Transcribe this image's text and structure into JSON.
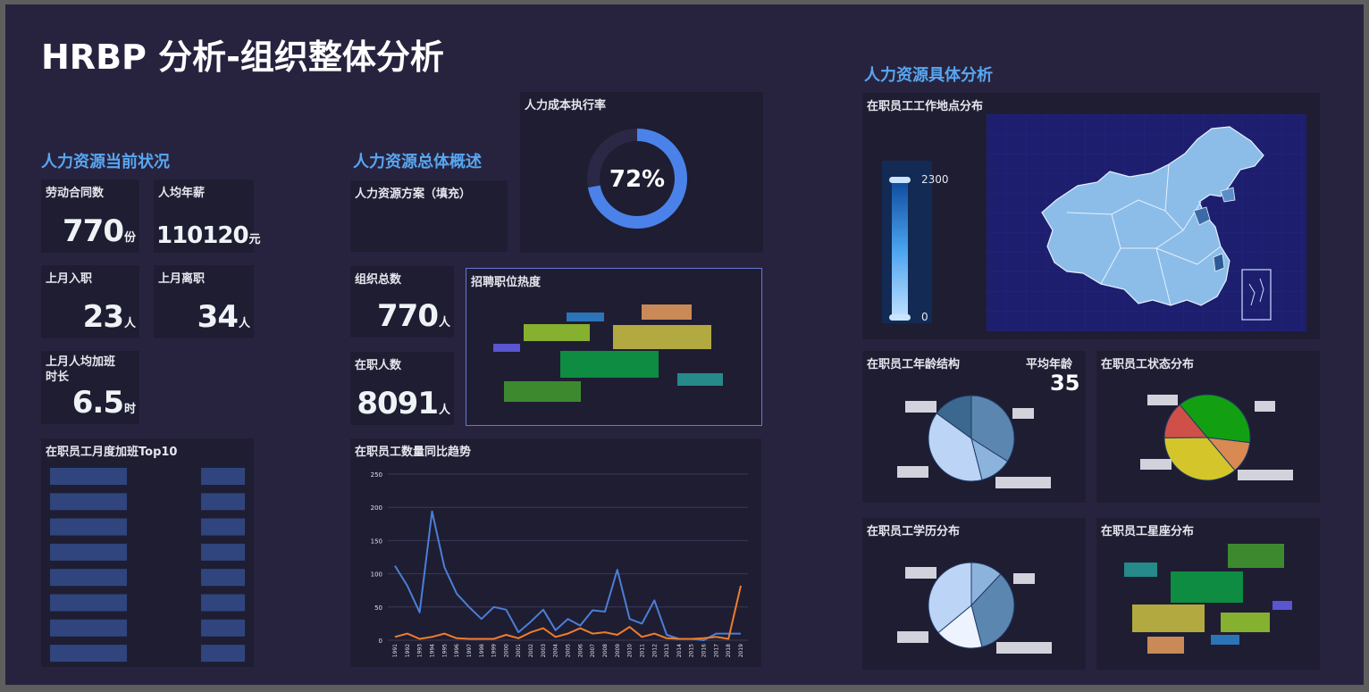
{
  "title": "HRBP 分析-组织整体分析",
  "sections": {
    "current": "人力资源当前状况",
    "overview": "人力资源总体概述",
    "detail": "人力资源具体分析"
  },
  "kpis": {
    "contracts": {
      "label": "劳动合同数",
      "value": "770",
      "unit": "份"
    },
    "salary": {
      "label": "人均年薪",
      "value": "110120",
      "unit": "元"
    },
    "hires": {
      "label": "上月入职",
      "value": "23",
      "unit": "人"
    },
    "leaves": {
      "label": "上月离职",
      "value": "34",
      "unit": "人"
    },
    "overtime": {
      "label": "上月人均加班时长",
      "value": "6.5",
      "unit": "时"
    },
    "org_total": {
      "label": "组织总数",
      "value": "770",
      "unit": "人"
    },
    "employees": {
      "label": "在职人数",
      "value": "8091",
      "unit": "人"
    }
  },
  "plan_panel": {
    "title": "人力资源方案（填充）"
  },
  "cost_rate": {
    "title": "人力成本执行率",
    "value": 72,
    "label": "72%",
    "color": "#4a82ea"
  },
  "panels": {
    "hot_jobs": "招聘职位热度",
    "overtime_top10": "在职员工月度加班Top10",
    "trend": "在职员工数量同比趋势",
    "map": "在职员工工作地点分布",
    "age": "在职员工年龄结构",
    "status": "在职员工状态分布",
    "education": "在职员工学历分布",
    "zodiac": "在职员工星座分布"
  },
  "age_avg": {
    "label": "平均年龄",
    "value": "35"
  },
  "map_legend": {
    "max": "2300",
    "min": "0"
  },
  "colors": {
    "accent": "#58a6f0",
    "line1": "#4a7fd6",
    "line2": "#ee7d2c"
  },
  "chart_data": [
    {
      "type": "line",
      "name": "trend",
      "x": [
        "1991",
        "1992",
        "1993",
        "1994",
        "1995",
        "1996",
        "1997",
        "1998",
        "1999",
        "2000",
        "2001",
        "2002",
        "2003",
        "2004",
        "2005",
        "2006",
        "2007",
        "2008",
        "2009",
        "2010",
        "2011",
        "2012",
        "2013",
        "2014",
        "2015",
        "2016",
        "2017",
        "2018",
        "2019"
      ],
      "series": [
        {
          "values": [
            112,
            82,
            42,
            194,
            110,
            70,
            50,
            32,
            50,
            46,
            12,
            28,
            46,
            15,
            32,
            22,
            45,
            43,
            106,
            32,
            25,
            60,
            8,
            2,
            2,
            0,
            10,
            10,
            10
          ],
          "color": "#4a7fd6"
        },
        {
          "values": [
            5,
            10,
            2,
            5,
            10,
            3,
            2,
            2,
            2,
            8,
            3,
            12,
            18,
            5,
            10,
            18,
            10,
            12,
            8,
            20,
            5,
            10,
            3,
            2,
            2,
            3,
            5,
            2,
            82
          ],
          "color": "#ee7d2c"
        }
      ],
      "ylim": [
        0,
        250
      ],
      "yticks": [
        0,
        50,
        100,
        150,
        200,
        250
      ],
      "grid": true
    },
    {
      "type": "pie",
      "name": "age",
      "values": [
        34,
        12,
        39,
        15
      ],
      "colors": [
        "#5b86b0",
        "#8cb3dc",
        "#bcd4f5",
        "#3c6890"
      ]
    },
    {
      "type": "pie",
      "name": "status",
      "values": [
        38,
        12,
        36,
        14
      ],
      "colors": [
        "#12a012",
        "#d88a52",
        "#d4c62a",
        "#cf5048"
      ]
    },
    {
      "type": "pie",
      "name": "education",
      "values": [
        12,
        34,
        18,
        36
      ],
      "colors": [
        "#8cb3dc",
        "#5b86b0",
        "#eef4ff",
        "#bcd4f5"
      ]
    },
    {
      "type": "bar",
      "name": "overtime_top10",
      "values": [
        1,
        1,
        1,
        1,
        1,
        1,
        1,
        1
      ],
      "color": "#30457e"
    }
  ]
}
